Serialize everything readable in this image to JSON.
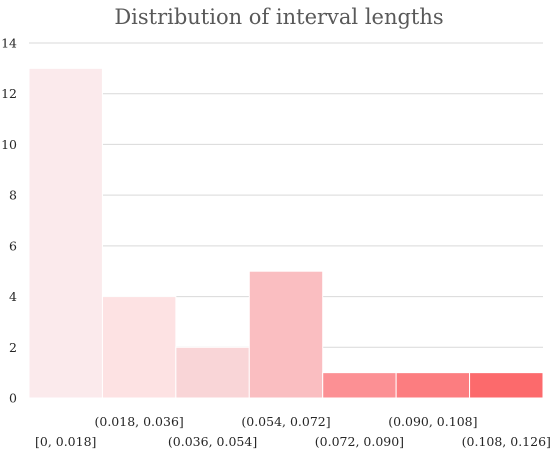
{
  "chart_data": {
    "type": "bar",
    "title": "Distribution of interval lengths",
    "xlabel": "",
    "ylabel": "",
    "categories": [
      "[0, 0.018]",
      "(0.018, 0.036]",
      "(0.036, 0.054]",
      "(0.054, 0.072]",
      "(0.072, 0.090]",
      "(0.090, 0.108]",
      "(0.108, 0.126]"
    ],
    "values": [
      13,
      4,
      2,
      5,
      1,
      1,
      1
    ],
    "ylim": [
      0,
      14
    ],
    "yticks": [
      "0",
      "2",
      "4",
      "6",
      "8",
      "10",
      "12",
      "14"
    ],
    "bar_colors": [
      "#fbeaec",
      "#fde2e3",
      "#f9d5d7",
      "#fabec1",
      "#fc9094",
      "#fc7d80",
      "#fc6a6c"
    ],
    "grid": true,
    "legend": "none"
  }
}
